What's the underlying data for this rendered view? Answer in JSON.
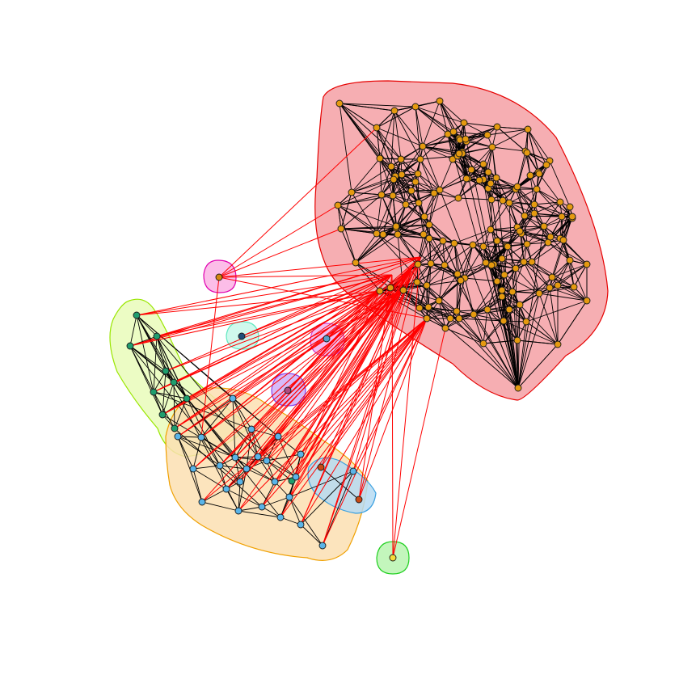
{
  "colors": {
    "background": "#ffffff",
    "intra_edge": "#000000",
    "inter_edge": "#ff0000",
    "node_stroke": "#1a1a1a"
  },
  "communities": [
    {
      "id": "large",
      "hull_fill": "#f5a0a5",
      "hull_stroke": "#e60000",
      "node_color": "#e59a10",
      "node_count": 150
    },
    {
      "id": "green",
      "hull_fill": "#e9fbba",
      "hull_stroke": "#99e600",
      "node_color": "#1f9e6e",
      "node_count": 10
    },
    {
      "id": "blue",
      "hull_fill": "#fcdfb2",
      "hull_stroke": "#f0a000",
      "node_color": "#5ab4e8",
      "node_count": 24
    },
    {
      "id": "red-small",
      "hull_fill": "#b6dbf2",
      "hull_stroke": "#3aa0e0",
      "node_color": "#c84a14",
      "node_count": 2
    },
    {
      "id": "singleton-pink",
      "hull_fill": "#fbb2e4",
      "hull_stroke": "#e000b0",
      "node_color": "#d6870f",
      "node_count": 1
    },
    {
      "id": "singleton-cyan",
      "hull_fill": "#c8f8ea",
      "hull_stroke": "#60e8c0",
      "node_color": "#1f4e79",
      "node_count": 1
    },
    {
      "id": "singleton-magenta",
      "hull_fill": "#f2b2f0",
      "hull_stroke": "#d040d0",
      "node_color": "#5a9ec8",
      "node_count": 1
    },
    {
      "id": "singleton-purple",
      "hull_fill": "#d0aef8",
      "hull_stroke": "#8a40e8",
      "node_color": "#b04a80",
      "node_count": 1
    },
    {
      "id": "singleton-yellow",
      "hull_fill": "#b8f5b0",
      "hull_stroke": "#20d020",
      "node_color": "#f5dc3a",
      "node_count": 1
    }
  ],
  "inter_community_edges": 95
}
